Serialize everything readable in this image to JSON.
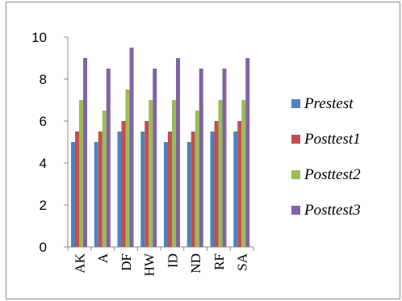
{
  "chart_data": {
    "type": "bar",
    "categories": [
      "AK",
      "A",
      "DF",
      "HW",
      "ID",
      "ND",
      "RF",
      "SA"
    ],
    "series": [
      {
        "name": "Prestest",
        "color": "#4f81bd",
        "values": [
          5,
          5,
          5.5,
          5.5,
          5,
          5,
          5.5,
          5.5
        ]
      },
      {
        "name": "Posttest1",
        "color": "#c0504d",
        "values": [
          5.5,
          5.5,
          6,
          6,
          5.5,
          5.5,
          6,
          6
        ]
      },
      {
        "name": "Posttest2",
        "color": "#9bbb59",
        "values": [
          7,
          6.5,
          7.5,
          7,
          7,
          6.5,
          7,
          7
        ]
      },
      {
        "name": "Posttest3",
        "color": "#8064a2",
        "values": [
          9,
          8.5,
          9.5,
          8.5,
          9,
          8.5,
          8.5,
          9
        ]
      }
    ],
    "ylim": [
      0,
      10
    ],
    "yticks": [
      0,
      2,
      4,
      6,
      8,
      10
    ],
    "grid": false,
    "legend": "right",
    "title": "",
    "xlabel": "",
    "ylabel": ""
  }
}
